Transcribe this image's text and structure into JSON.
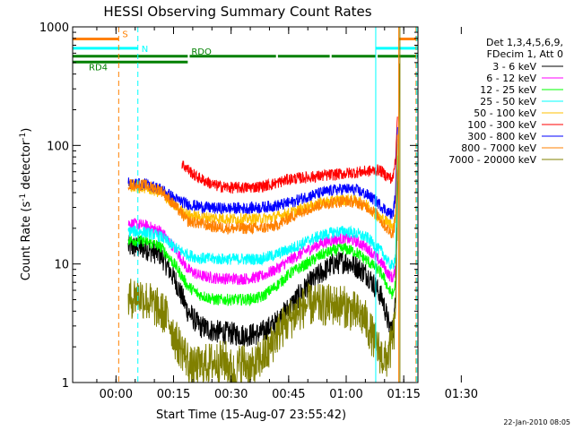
{
  "chart_data": {
    "type": "line",
    "title": "HESSI Observing Summary Count Rates",
    "xlabel": "Start Time (15-Aug-07 23:55:42)",
    "ylabel_main": "Count Rate (s",
    "ylabel_sup1": "-1",
    "ylabel_mid": " detector",
    "ylabel_sup2": "-1",
    "ylabel_end": ")",
    "x_unit": "minutes after start",
    "xlim": [
      -7,
      83
    ],
    "ylim": [
      1,
      1000
    ],
    "yscale": "log",
    "x_tick_labels": [
      "00:00",
      "00:15",
      "00:30",
      "00:45",
      "01:00",
      "01:15",
      "01:30"
    ],
    "x_tick_values": [
      4.3,
      19.3,
      34.3,
      49.3,
      64.3,
      79.3,
      94.3
    ],
    "y_tick_labels": [
      "1",
      "10",
      "100",
      "1000"
    ],
    "y_tick_values": [
      1,
      10,
      100,
      1000
    ],
    "legend_header": [
      "Det 1,3,4,5,6,9,",
      "FDecim 1, Att 0"
    ],
    "series": [
      {
        "name": "3 - 6 keV",
        "color": "#000000",
        "points": [
          [
            7.5,
            14
          ],
          [
            12,
            13.5
          ],
          [
            16,
            12
          ],
          [
            20,
            7
          ],
          [
            23,
            4
          ],
          [
            26,
            3
          ],
          [
            30,
            2.7
          ],
          [
            34,
            2.6
          ],
          [
            38,
            2.5
          ],
          [
            42,
            2.6
          ],
          [
            46,
            3.2
          ],
          [
            50,
            4.5
          ],
          [
            54,
            6.5
          ],
          [
            58,
            8.5
          ],
          [
            61,
            10
          ],
          [
            64,
            10.5
          ],
          [
            67,
            9.5
          ],
          [
            70,
            8
          ],
          [
            72.5,
            6
          ],
          [
            73.8,
            5
          ],
          [
            75.5,
            3
          ],
          [
            76.5,
            2.7
          ],
          [
            77.2,
            5
          ],
          [
            77.7,
            60
          ]
        ]
      },
      {
        "name": "6 - 12 keV",
        "color": "#ff00ff",
        "points": [
          [
            7.5,
            22
          ],
          [
            12,
            21
          ],
          [
            16,
            19
          ],
          [
            20,
            13
          ],
          [
            23,
            9
          ],
          [
            26,
            8
          ],
          [
            30,
            7.6
          ],
          [
            34,
            7.5
          ],
          [
            38,
            7.5
          ],
          [
            42,
            7.8
          ],
          [
            46,
            9
          ],
          [
            50,
            11
          ],
          [
            54,
            13
          ],
          [
            58,
            15
          ],
          [
            61,
            16
          ],
          [
            64,
            16.5
          ],
          [
            67,
            15.5
          ],
          [
            70,
            13.5
          ],
          [
            72.5,
            11
          ],
          [
            73.8,
            10
          ],
          [
            75.5,
            8
          ],
          [
            76.5,
            7.6
          ],
          [
            77.2,
            9
          ],
          [
            77.7,
            80
          ]
        ]
      },
      {
        "name": "12 - 25 keV",
        "color": "#00ff00",
        "points": [
          [
            7.5,
            16
          ],
          [
            12,
            15.5
          ],
          [
            16,
            14
          ],
          [
            20,
            9.5
          ],
          [
            23,
            6.5
          ],
          [
            26,
            5.5
          ],
          [
            30,
            5
          ],
          [
            34,
            5
          ],
          [
            38,
            5
          ],
          [
            42,
            5.2
          ],
          [
            46,
            6.5
          ],
          [
            50,
            8.5
          ],
          [
            54,
            10
          ],
          [
            58,
            12
          ],
          [
            61,
            13
          ],
          [
            64,
            13.5
          ],
          [
            67,
            12.5
          ],
          [
            70,
            10.5
          ],
          [
            72.5,
            9
          ],
          [
            73.8,
            8
          ],
          [
            75.5,
            6
          ],
          [
            76.5,
            5.5
          ],
          [
            77.2,
            7
          ],
          [
            77.7,
            100
          ]
        ]
      },
      {
        "name": "25 - 50 keV",
        "color": "#00ffff",
        "points": [
          [
            7.5,
            19
          ],
          [
            12,
            18.5
          ],
          [
            16,
            17
          ],
          [
            20,
            13.5
          ],
          [
            23,
            12
          ],
          [
            26,
            11.2
          ],
          [
            30,
            11
          ],
          [
            34,
            11
          ],
          [
            38,
            11
          ],
          [
            42,
            11
          ],
          [
            46,
            12
          ],
          [
            50,
            13.5
          ],
          [
            54,
            15.5
          ],
          [
            58,
            17.5
          ],
          [
            61,
            18.5
          ],
          [
            64,
            19
          ],
          [
            67,
            18
          ],
          [
            70,
            16.5
          ],
          [
            72.5,
            13.5
          ],
          [
            73.8,
            12.5
          ],
          [
            75.5,
            10
          ],
          [
            76.5,
            9.6
          ],
          [
            77.2,
            12
          ],
          [
            77.7,
            120
          ]
        ]
      },
      {
        "name": "50 - 100 keV",
        "color": "#ffc000",
        "points": [
          [
            7.5,
            45
          ],
          [
            12,
            44
          ],
          [
            16,
            40
          ],
          [
            20,
            30
          ],
          [
            23,
            26
          ],
          [
            26,
            25
          ],
          [
            30,
            24.5
          ],
          [
            34,
            24
          ],
          [
            38,
            24
          ],
          [
            42,
            24
          ],
          [
            46,
            25
          ],
          [
            50,
            27
          ],
          [
            54,
            30
          ],
          [
            58,
            33
          ],
          [
            61,
            34
          ],
          [
            64,
            35
          ],
          [
            67,
            34
          ],
          [
            70,
            31
          ],
          [
            72.5,
            25
          ],
          [
            73.8,
            24
          ],
          [
            75.5,
            22
          ],
          [
            76.5,
            21
          ],
          [
            77.2,
            25
          ],
          [
            77.7,
            130
          ]
        ]
      },
      {
        "name": "100 - 300 keV",
        "color": "#ff0000",
        "points": [
          [
            21.5,
            70
          ],
          [
            25,
            55
          ],
          [
            30,
            46
          ],
          [
            34,
            44
          ],
          [
            38,
            44
          ],
          [
            42,
            45
          ],
          [
            46,
            48
          ],
          [
            49.5,
            52
          ],
          [
            73,
            62
          ],
          [
            75,
            55
          ],
          [
            76.5,
            52
          ],
          [
            77.2,
            80
          ],
          [
            77.7,
            210
          ]
        ]
      },
      {
        "name": "300 - 800 keV",
        "color": "#0000ff",
        "points": [
          [
            7.5,
            48
          ],
          [
            12,
            47
          ],
          [
            16,
            43
          ],
          [
            20,
            35
          ],
          [
            23,
            32
          ],
          [
            26,
            30.5
          ],
          [
            30,
            29.5
          ],
          [
            34,
            29.5
          ],
          [
            38,
            29.5
          ],
          [
            42,
            30
          ],
          [
            46,
            31
          ],
          [
            50,
            33
          ],
          [
            54,
            37
          ],
          [
            58,
            40
          ],
          [
            61,
            42
          ],
          [
            64,
            43
          ],
          [
            67,
            42
          ],
          [
            70,
            38
          ],
          [
            72.5,
            33
          ],
          [
            73.8,
            30
          ],
          [
            75.5,
            27
          ],
          [
            76.5,
            26
          ],
          [
            77.2,
            40
          ],
          [
            77.7,
            180
          ]
        ]
      },
      {
        "name": "800 - 7000 keV",
        "color": "#ff8000",
        "points": [
          [
            7.5,
            47
          ],
          [
            12,
            46
          ],
          [
            16,
            42
          ],
          [
            20,
            30
          ],
          [
            23,
            23
          ],
          [
            26,
            22
          ],
          [
            30,
            20.5
          ],
          [
            34,
            20
          ],
          [
            38,
            20
          ],
          [
            42,
            20
          ],
          [
            46,
            21
          ],
          [
            50,
            25
          ],
          [
            54,
            29
          ],
          [
            58,
            32
          ],
          [
            61,
            33
          ],
          [
            64,
            34
          ],
          [
            67,
            33
          ],
          [
            70,
            30
          ],
          [
            72.5,
            26
          ],
          [
            73.8,
            22
          ],
          [
            75.5,
            19
          ],
          [
            76.5,
            18
          ],
          [
            77.2,
            25
          ],
          [
            77.7,
            150
          ]
        ]
      },
      {
        "name": "7000 - 20000 keV",
        "color": "#808000",
        "points": [
          [
            7.5,
            5
          ],
          [
            10,
            5.5
          ],
          [
            12,
            5
          ],
          [
            14,
            4.5
          ],
          [
            16,
            4
          ],
          [
            18,
            3.5
          ],
          [
            20,
            2.2
          ],
          [
            22,
            1.8
          ],
          [
            24,
            1.3
          ],
          [
            27,
            1.4
          ],
          [
            30,
            1.5
          ],
          [
            33,
            1.5
          ],
          [
            35,
            1.2
          ],
          [
            37,
            1.5
          ],
          [
            40,
            1.3
          ],
          [
            42,
            1.6
          ],
          [
            44,
            1.8
          ],
          [
            46,
            2.5
          ],
          [
            48,
            3
          ],
          [
            50,
            3.5
          ],
          [
            52,
            4
          ],
          [
            54,
            4.5
          ],
          [
            57,
            4.5
          ],
          [
            60,
            4.5
          ],
          [
            63,
            4.5
          ],
          [
            66,
            4
          ],
          [
            69,
            3.5
          ],
          [
            71,
            2.5
          ],
          [
            73,
            1.8
          ],
          [
            74.5,
            1.5
          ],
          [
            76,
            2
          ],
          [
            77,
            3
          ],
          [
            77.7,
            25
          ],
          [
            78.2,
            700
          ]
        ]
      }
    ],
    "attenuator_markers": [
      {
        "label": "S",
        "color": "#ff8000",
        "y": 790,
        "segments": [
          [
            -7,
            5
          ],
          [
            78,
            83
          ]
        ]
      },
      {
        "label": "N",
        "color": "#00ffff",
        "y": 660,
        "segments": [
          [
            -7,
            10
          ],
          [
            72,
            83
          ]
        ]
      },
      {
        "label": "RDO",
        "color": "#008000",
        "y": 565,
        "segments": [
          [
            -7,
            23
          ],
          [
            23.5,
            46
          ],
          [
            46.5,
            60
          ],
          [
            60.5,
            72
          ],
          [
            72.5,
            83
          ]
        ]
      },
      {
        "label": "RD4",
        "color": "#008000",
        "y": 505,
        "segments": [
          [
            -7,
            23
          ]
        ]
      }
    ],
    "vertical_markers": [
      {
        "x": 5,
        "color": "#ff8000",
        "style": "dashed"
      },
      {
        "x": 10,
        "color": "#00ffff",
        "style": "dashed"
      },
      {
        "x": 72,
        "color": "#00ffff",
        "style": "solid"
      },
      {
        "x": 78,
        "color": "#ff8000",
        "style": "solid"
      },
      {
        "x": 78.3,
        "color": "#808000",
        "style": "solid"
      },
      {
        "x": 82.5,
        "color": "#ff8000",
        "style": "dashed"
      },
      {
        "x": 82.7,
        "color": "#00ffff",
        "style": "dashed"
      }
    ],
    "footer_date": "22-Jan-2010 08:05"
  }
}
